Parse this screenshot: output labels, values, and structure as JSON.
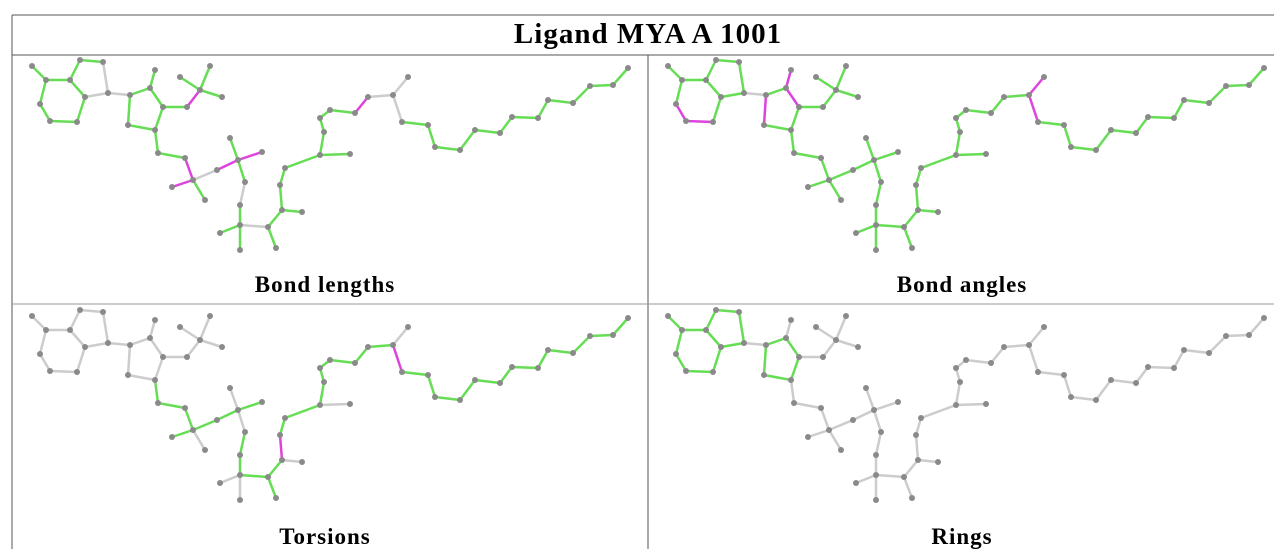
{
  "header": {
    "title": "Ligand MYA A 1001"
  },
  "panels": [
    {
      "caption": "Bond lengths"
    },
    {
      "caption": "Bond angles"
    },
    {
      "caption": "Torsions"
    },
    {
      "caption": "Rings"
    }
  ]
}
